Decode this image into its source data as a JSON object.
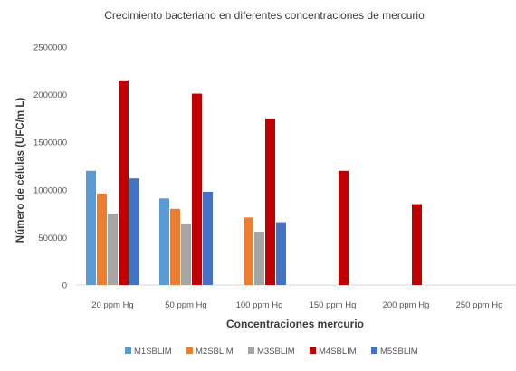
{
  "chart_data": {
    "type": "bar",
    "title": "Crecimiento bacteriano en diferentes concentraciones de mercurio",
    "xlabel": "Concentraciones mercurio",
    "ylabel": "Número de células (UFC/m L)",
    "categories": [
      "20 ppm Hg",
      "50 ppm Hg",
      "100 ppm Hg",
      "150 ppm Hg",
      "200 ppm Hg",
      "250 ppm Hg"
    ],
    "yticks": [
      "0",
      "500000",
      "1000000",
      "1500000",
      "2000000",
      "2500000"
    ],
    "ylim": [
      0,
      2500000
    ],
    "grid": false,
    "legend_position": "bottom",
    "series": [
      {
        "name": "M1SBLIM",
        "color": "#5b9bd5",
        "values": [
          1200000,
          910000,
          0,
          0,
          0,
          0
        ]
      },
      {
        "name": "M2SBLIM",
        "color": "#ed7d31",
        "values": [
          960000,
          800000,
          710000,
          0,
          0,
          0
        ]
      },
      {
        "name": "M3SBLIM",
        "color": "#a5a5a5",
        "values": [
          750000,
          640000,
          560000,
          0,
          0,
          0
        ]
      },
      {
        "name": "M4SBLIM",
        "color": "#c00000",
        "values": [
          2150000,
          2010000,
          1750000,
          1200000,
          850000,
          0
        ]
      },
      {
        "name": "M5SBLIM",
        "color": "#4472c4",
        "values": [
          1120000,
          980000,
          660000,
          0,
          0,
          0
        ]
      }
    ]
  }
}
